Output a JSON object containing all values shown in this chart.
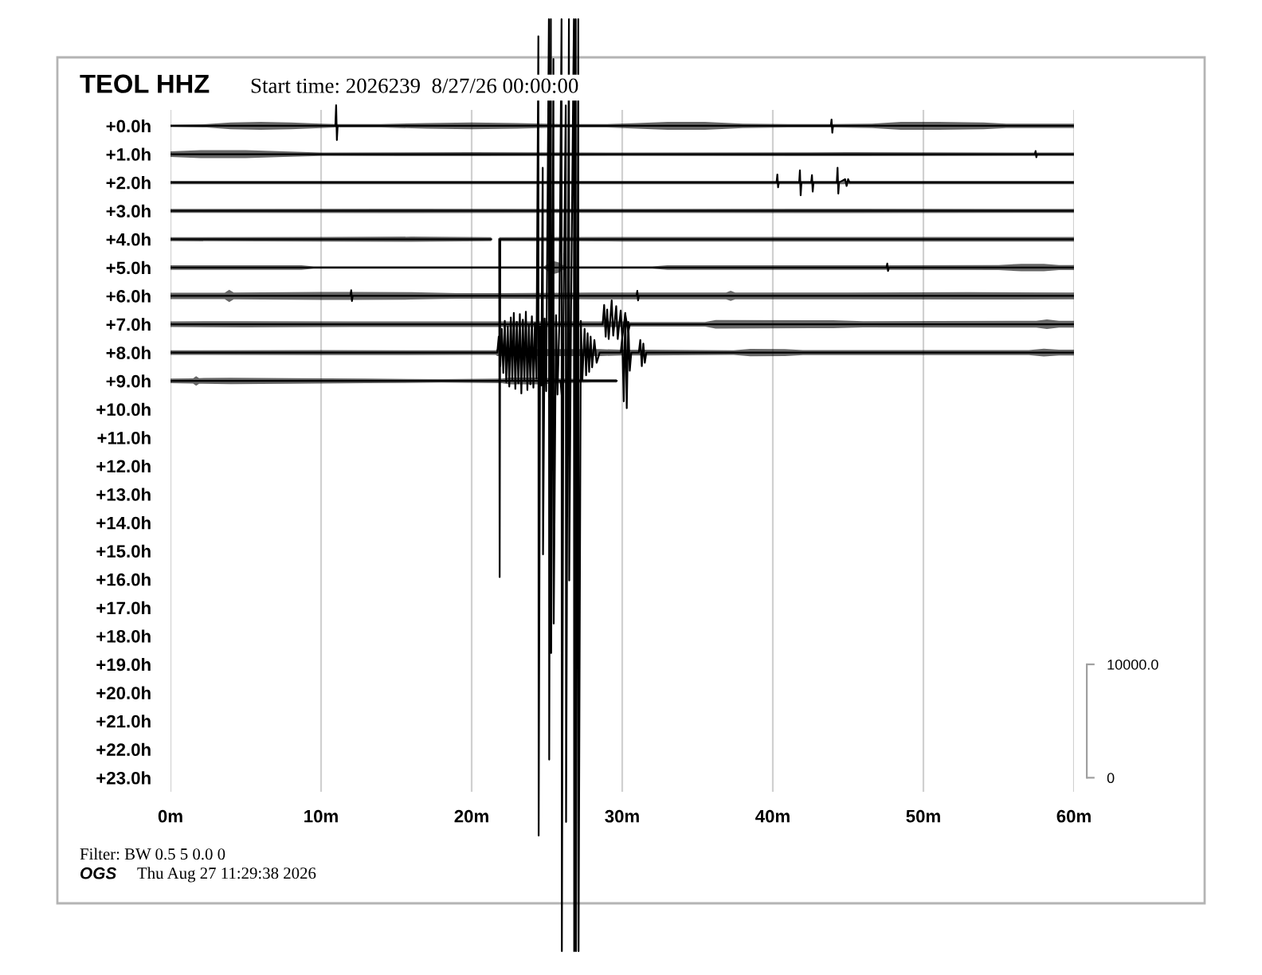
{
  "chart_data": {
    "type": "line",
    "title": "TEOL HHZ",
    "subtitle": "Start time: 2026239  8/27/26 00:00:00",
    "annotations": [
      "Filter: BW 0.5 5 0.0 0",
      "OGS",
      "Thu Aug 27 11:29:38 2026"
    ],
    "xlim": [
      0,
      60
    ],
    "xticks": [
      {
        "value": 0,
        "label": "0m"
      },
      {
        "value": 10,
        "label": "10m"
      },
      {
        "value": 20,
        "label": "20m"
      },
      {
        "value": 30,
        "label": "30m"
      },
      {
        "value": 40,
        "label": "40m"
      },
      {
        "value": 50,
        "label": "50m"
      },
      {
        "value": 60,
        "label": "60m"
      }
    ],
    "ylim": [
      29.96,
      -4.44
    ],
    "yticks": [
      {
        "value": 0,
        "label": "+0.0h"
      },
      {
        "value": 1,
        "label": "+1.0h"
      },
      {
        "value": 2,
        "label": "+2.0h"
      },
      {
        "value": 3,
        "label": "+3.0h"
      },
      {
        "value": 4,
        "label": "+4.0h"
      },
      {
        "value": 5,
        "label": "+5.0h"
      },
      {
        "value": 6,
        "label": "+6.0h"
      },
      {
        "value": 7,
        "label": "+7.0h"
      },
      {
        "value": 8,
        "label": "+8.0h"
      },
      {
        "value": 9,
        "label": "+9.0h"
      },
      {
        "value": 10,
        "label": "+10.0h"
      },
      {
        "value": 11,
        "label": "+11.0h"
      },
      {
        "value": 12,
        "label": "+12.0h"
      },
      {
        "value": 13,
        "label": "+13.0h"
      },
      {
        "value": 14,
        "label": "+14.0h"
      },
      {
        "value": 15,
        "label": "+15.0h"
      },
      {
        "value": 16,
        "label": "+16.0h"
      },
      {
        "value": 17,
        "label": "+17.0h"
      },
      {
        "value": 18,
        "label": "+18.0h"
      },
      {
        "value": 19,
        "label": "+19.0h"
      },
      {
        "value": 20,
        "label": "+20.0h"
      },
      {
        "value": 21,
        "label": "+21.0h"
      },
      {
        "value": 22,
        "label": "+22.0h"
      },
      {
        "value": 23,
        "label": "+23.0h"
      }
    ],
    "y2lim": [
      -17400,
      68600
    ],
    "y2ticks": [
      0,
      {
        "value": 10000,
        "label": "10000.0"
      }
    ],
    "grid": "x",
    "series": [
      {
        "color": "#000000",
        "x": [
          0,
          2.4,
          4,
          6,
          8,
          10,
          10.95,
          11.0,
          11.05,
          11.1,
          14,
          17,
          20,
          23,
          26,
          29,
          31,
          33,
          35.5,
          38,
          41,
          43.85,
          43.9,
          43.95,
          44.0,
          46.6,
          48.5,
          51,
          54,
          55.5,
          60
        ],
        "values": [
          0,
          0,
          0,
          0,
          0,
          0,
          0,
          -0.73,
          0.5,
          0,
          0,
          0,
          0,
          0,
          0,
          0,
          0,
          0,
          0,
          0,
          0,
          0,
          -0.22,
          0.24,
          0,
          0,
          0,
          0,
          0,
          0,
          0
        ],
        "lower": [
          -0.04,
          -0.06,
          -0.12,
          -0.14,
          -0.12,
          -0.08,
          -0.06,
          -0.06,
          -0.06,
          -0.06,
          -0.06,
          -0.1,
          -0.12,
          -0.1,
          -0.06,
          -0.06,
          -0.1,
          -0.14,
          -0.14,
          -0.08,
          -0.06,
          -0.06,
          -0.06,
          -0.06,
          -0.06,
          -0.08,
          -0.14,
          -0.14,
          -0.12,
          -0.08,
          -0.08
        ],
        "upper": [
          0.04,
          0.06,
          0.12,
          0.14,
          0.12,
          0.08,
          0.06,
          0.06,
          0.06,
          0.06,
          0.06,
          0.1,
          0.12,
          0.1,
          0.06,
          0.06,
          0.1,
          0.14,
          0.14,
          0.08,
          0.06,
          0.06,
          0.06,
          0.06,
          0.06,
          0.08,
          0.14,
          0.14,
          0.12,
          0.08,
          0.08
        ]
      },
      {
        "color": "#000000",
        "x": [
          0,
          2,
          5,
          7.5,
          10,
          20,
          30,
          45,
          57.4,
          57.45,
          57.5,
          57.55,
          60
        ],
        "values": [
          1,
          1,
          1,
          1,
          1,
          1,
          1,
          1,
          1,
          0.89,
          1.11,
          1,
          1
        ],
        "lower": [
          0.9,
          0.86,
          0.86,
          0.9,
          0.94,
          0.93,
          0.94,
          0.93,
          0.94,
          0.94,
          0.94,
          0.94,
          0.94
        ],
        "upper": [
          1.1,
          1.14,
          1.14,
          1.1,
          1.06,
          1.07,
          1.06,
          1.07,
          1.06,
          1.06,
          1.06,
          1.06,
          1.06
        ]
      },
      {
        "color": "#000000",
        "x": [
          0,
          20,
          40.25,
          40.3,
          40.35,
          40.4,
          41.75,
          41.8,
          41.85,
          41.9,
          42.55,
          42.6,
          42.65,
          42.7,
          44.25,
          44.3,
          44.35,
          44.4,
          44.8,
          44.9,
          45.0,
          45.1,
          60
        ],
        "values": [
          2,
          2,
          2,
          1.72,
          2.17,
          2,
          2,
          1.57,
          2.45,
          2,
          2,
          1.74,
          2.32,
          2,
          2,
          1.48,
          2.39,
          2,
          1.88,
          2.12,
          1.88,
          2,
          2
        ],
        "lower": [
          1.94,
          1.94,
          1.94,
          1.94,
          1.94,
          1.94,
          1.94,
          1.94,
          1.94,
          1.94,
          1.94,
          1.94,
          1.94,
          1.94,
          1.94,
          1.94,
          1.94,
          1.94,
          1.94,
          1.94,
          1.94,
          1.94,
          1.94
        ],
        "upper": [
          2.06,
          2.06,
          2.06,
          2.06,
          2.06,
          2.06,
          2.06,
          2.06,
          2.06,
          2.06,
          2.06,
          2.06,
          2.06,
          2.06,
          2.06,
          2.06,
          2.06,
          2.06,
          2.06,
          2.06,
          2.06,
          2.06,
          2.06
        ]
      },
      {
        "color": "#000000",
        "x": [
          0,
          15,
          30,
          45,
          60
        ],
        "values": [
          3,
          3,
          3,
          3,
          3
        ],
        "lower": [
          2.93,
          2.92,
          2.93,
          2.92,
          2.93
        ],
        "upper": [
          3.07,
          3.08,
          3.07,
          3.08,
          3.07
        ]
      },
      {
        "color": "#000000",
        "x": [
          0,
          10,
          16,
          21.3,
          21.5,
          21.83,
          21.86,
          21.9,
          30,
          45,
          60
        ],
        "values": [
          4,
          4,
          4,
          4,
          null,
          4,
          15.92,
          4,
          4,
          4,
          4
        ],
        "lower": [
          3.93,
          3.92,
          3.91,
          3.93,
          null,
          3.93,
          3.93,
          3.93,
          3.92,
          3.92,
          3.92
        ],
        "upper": [
          4.07,
          4.08,
          4.09,
          4.07,
          null,
          4.07,
          4.07,
          4.07,
          4.08,
          4.08,
          4.08
        ]
      },
      {
        "color": "#000000",
        "x": [
          0,
          8.7,
          9.5,
          24.8,
          25.2,
          25.5,
          25.8,
          26.2,
          32,
          33,
          47.55,
          47.6,
          47.65,
          47.7,
          55,
          56.5,
          58,
          59,
          60
        ],
        "values": [
          5,
          5,
          5,
          5,
          5,
          5,
          5,
          5,
          5,
          5,
          5,
          4.86,
          5.12,
          5,
          5,
          5,
          5,
          5,
          5
        ],
        "lower": [
          4.92,
          4.92,
          4.96,
          4.96,
          4.82,
          4.78,
          4.82,
          4.96,
          4.96,
          4.92,
          4.92,
          4.92,
          4.92,
          4.92,
          4.91,
          4.87,
          4.87,
          4.91,
          4.91
        ],
        "upper": [
          5.08,
          5.08,
          5.04,
          5.04,
          5.18,
          5.22,
          5.18,
          5.04,
          5.04,
          5.08,
          5.08,
          5.08,
          5.08,
          5.08,
          5.09,
          5.13,
          5.13,
          5.09,
          5.09
        ]
      },
      {
        "color": "#000000",
        "x": [
          0,
          3.6,
          3.9,
          4.2,
          10,
          11.95,
          12.0,
          12.05,
          12.1,
          16,
          19,
          22,
          28,
          30.95,
          31.0,
          31.05,
          31.1,
          36.9,
          37.2,
          37.5,
          45,
          53,
          60
        ],
        "values": [
          6,
          6,
          6,
          6,
          6,
          6,
          5.8,
          6.18,
          6,
          6,
          6,
          6,
          6,
          6,
          5.82,
          6.16,
          6,
          6,
          6,
          6,
          6,
          6,
          6
        ],
        "lower": [
          5.89,
          5.89,
          5.78,
          5.88,
          5.86,
          5.86,
          5.86,
          5.86,
          5.86,
          5.87,
          5.9,
          5.9,
          5.88,
          5.88,
          5.88,
          5.88,
          5.88,
          5.88,
          5.82,
          5.88,
          5.88,
          5.87,
          5.88
        ],
        "upper": [
          6.11,
          6.11,
          6.22,
          6.12,
          6.14,
          6.14,
          6.14,
          6.14,
          6.14,
          6.13,
          6.1,
          6.1,
          6.12,
          6.12,
          6.12,
          6.12,
          6.12,
          6.12,
          6.18,
          6.12,
          6.12,
          6.13,
          6.12
        ]
      },
      {
        "color": "#000000",
        "x": [
          0,
          5,
          12,
          20,
          22,
          28.7,
          28.8,
          28.9,
          29.0,
          29.1,
          29.3,
          29.4,
          29.6,
          29.7,
          29.9,
          30.0,
          30.2,
          30.4,
          30.5,
          35.5,
          36.2,
          44,
          46,
          57.5,
          58.2,
          59,
          60
        ],
        "values": [
          7,
          7,
          7,
          7,
          7,
          7,
          6.32,
          7.44,
          6.48,
          7.52,
          6.16,
          7.4,
          6.36,
          7.52,
          6.52,
          7.48,
          6.64,
          7.28,
          7,
          7,
          7,
          7,
          7,
          7,
          7,
          7,
          7
        ],
        "lower": [
          6.9,
          6.89,
          6.9,
          6.9,
          6.9,
          6.9,
          6.9,
          6.9,
          6.9,
          6.9,
          6.9,
          6.9,
          6.9,
          6.9,
          6.9,
          6.9,
          6.9,
          6.9,
          6.92,
          6.92,
          6.85,
          6.86,
          6.89,
          6.88,
          6.83,
          6.88,
          6.88
        ],
        "upper": [
          7.1,
          7.11,
          7.1,
          7.1,
          7.1,
          7.1,
          7.1,
          7.1,
          7.1,
          7.1,
          7.1,
          7.1,
          7.1,
          7.1,
          7.1,
          7.1,
          7.1,
          7.1,
          7.08,
          7.08,
          7.15,
          7.14,
          7.11,
          7.12,
          7.17,
          7.12,
          7.12
        ]
      },
      {
        "color": "#000000",
        "x": [
          0,
          10,
          20,
          21.6,
          21.7,
          21.8,
          21.9,
          22.0,
          22.1,
          22.2,
          22.3,
          22.4,
          22.5,
          22.6,
          22.7,
          22.8,
          22.9,
          23.0,
          23.1,
          23.2,
          23.3,
          23.4,
          23.5,
          23.6,
          23.7,
          23.8,
          23.9,
          24.0,
          24.1,
          24.2,
          24.3,
          24.43,
          24.45,
          24.55,
          24.62,
          24.72,
          24.74,
          24.85,
          24.95,
          25.13,
          25.15,
          25.26,
          25.28,
          25.43,
          25.45,
          25.6,
          25.7,
          25.82,
          25.97,
          25.99,
          26.1,
          26.25,
          26.27,
          26.46,
          26.48,
          26.6,
          26.79,
          26.81,
          26.91,
          26.93,
          27.08,
          27.1,
          27.25,
          27.35,
          27.5,
          27.6,
          27.7,
          27.8,
          27.9,
          28.0,
          28.15,
          28.3,
          28.5,
          29.9,
          30.0,
          30.1,
          30.2,
          30.3,
          30.4,
          30.5,
          30.6,
          31.1,
          31.2,
          31.3,
          31.4,
          31.5,
          31.6,
          37.4,
          38.5,
          40.8,
          42,
          57,
          58,
          59,
          60
        ],
        "values": [
          8,
          8,
          8,
          8,
          8,
          7.44,
          8.48,
          7.16,
          8.72,
          6.88,
          9.04,
          7.08,
          9.2,
          6.76,
          8.96,
          6.6,
          9.28,
          6.92,
          9.08,
          6.64,
          9.44,
          6.84,
          9,
          6.56,
          9.32,
          7.04,
          9.12,
          6.72,
          9.24,
          6.96,
          8.92,
          -3.16,
          25.04,
          7.08,
          9.16,
          1.48,
          15.12,
          6.8,
          9.36,
          -3.76,
          22.36,
          -3.76,
          18.6,
          -2.36,
          17.56,
          6.68,
          9.48,
          7.04,
          -3.76,
          29.12,
          6.76,
          -0.72,
          24.56,
          -3.76,
          16.04,
          6.52,
          -3.76,
          29.12,
          -3.76,
          29.12,
          -3.76,
          29.12,
          6.88,
          8.96,
          7.16,
          8.8,
          7.32,
          8.68,
          7.44,
          8.52,
          7.56,
          8.36,
          8,
          8,
          7.48,
          9.72,
          6.6,
          9.96,
          6.92,
          8.64,
          8,
          8,
          7.56,
          8.48,
          7.68,
          8.36,
          8,
          8,
          8,
          8,
          8,
          8,
          8,
          8,
          8
        ],
        "lower": [
          7.92,
          7.91,
          7.92,
          7.92,
          7.88,
          7.88,
          7.88,
          7.88,
          7.88,
          7.88,
          7.88,
          7.88,
          7.88,
          7.88,
          7.88,
          7.88,
          7.88,
          7.88,
          7.88,
          7.88,
          7.88,
          7.88,
          7.88,
          7.88,
          7.88,
          7.88,
          7.88,
          7.88,
          7.88,
          7.88,
          7.88,
          7.88,
          7.88,
          7.88,
          7.88,
          7.88,
          7.88,
          7.88,
          7.88,
          7.88,
          7.88,
          7.88,
          7.88,
          7.88,
          7.88,
          7.88,
          7.88,
          7.88,
          7.88,
          7.88,
          7.88,
          7.88,
          7.88,
          7.88,
          7.88,
          7.88,
          7.88,
          7.88,
          7.88,
          7.88,
          7.88,
          7.88,
          7.88,
          7.88,
          7.88,
          7.88,
          7.88,
          7.88,
          7.88,
          7.88,
          7.88,
          7.88,
          7.88,
          7.9,
          7.9,
          7.9,
          7.9,
          7.9,
          7.9,
          7.9,
          7.9,
          7.9,
          7.9,
          7.9,
          7.9,
          7.9,
          7.9,
          7.92,
          7.87,
          7.88,
          7.91,
          7.91,
          7.86,
          7.9,
          7.9
        ],
        "upper": [
          8.08,
          8.09,
          8.08,
          8.08,
          8.12,
          8.12,
          8.12,
          8.12,
          8.12,
          8.12,
          8.12,
          8.12,
          8.12,
          8.12,
          8.12,
          8.12,
          8.12,
          8.12,
          8.12,
          8.12,
          8.12,
          8.12,
          8.12,
          8.12,
          8.12,
          8.12,
          8.12,
          8.12,
          8.12,
          8.12,
          8.12,
          8.12,
          8.12,
          8.12,
          8.12,
          8.12,
          8.12,
          8.12,
          8.12,
          8.12,
          8.12,
          8.12,
          8.12,
          8.12,
          8.12,
          8.12,
          8.12,
          8.12,
          8.12,
          8.12,
          8.12,
          8.12,
          8.12,
          8.12,
          8.12,
          8.12,
          8.12,
          8.12,
          8.12,
          8.12,
          8.12,
          8.12,
          8.12,
          8.12,
          8.12,
          8.12,
          8.12,
          8.12,
          8.12,
          8.12,
          8.12,
          8.12,
          8.12,
          8.1,
          8.1,
          8.1,
          8.1,
          8.1,
          8.1,
          8.1,
          8.1,
          8.1,
          8.1,
          8.1,
          8.1,
          8.1,
          8.1,
          8.08,
          8.13,
          8.12,
          8.09,
          8.09,
          8.14,
          8.1,
          8.1
        ]
      },
      {
        "color": "#000000",
        "x": [
          0,
          1.5,
          1.7,
          1.9,
          4,
          8,
          13,
          18,
          22,
          22.5,
          24.5,
          25.9,
          26.0,
          26.05,
          26.1,
          28,
          29.63
        ],
        "values": [
          9,
          9,
          9,
          9,
          9,
          9,
          9,
          9,
          9,
          9,
          9,
          9,
          9.6,
          8.76,
          9,
          9,
          9
        ],
        "lower": [
          8.92,
          8.91,
          8.83,
          8.9,
          8.89,
          8.9,
          8.92,
          8.94,
          8.92,
          8.88,
          8.88,
          8.92,
          8.92,
          8.92,
          8.92,
          8.94,
          8.94
        ],
        "upper": [
          9.08,
          9.09,
          9.17,
          9.1,
          9.11,
          9.1,
          9.08,
          9.06,
          9.08,
          9.12,
          9.12,
          9.08,
          9.08,
          9.08,
          9.08,
          9.06,
          9.06
        ]
      }
    ]
  }
}
